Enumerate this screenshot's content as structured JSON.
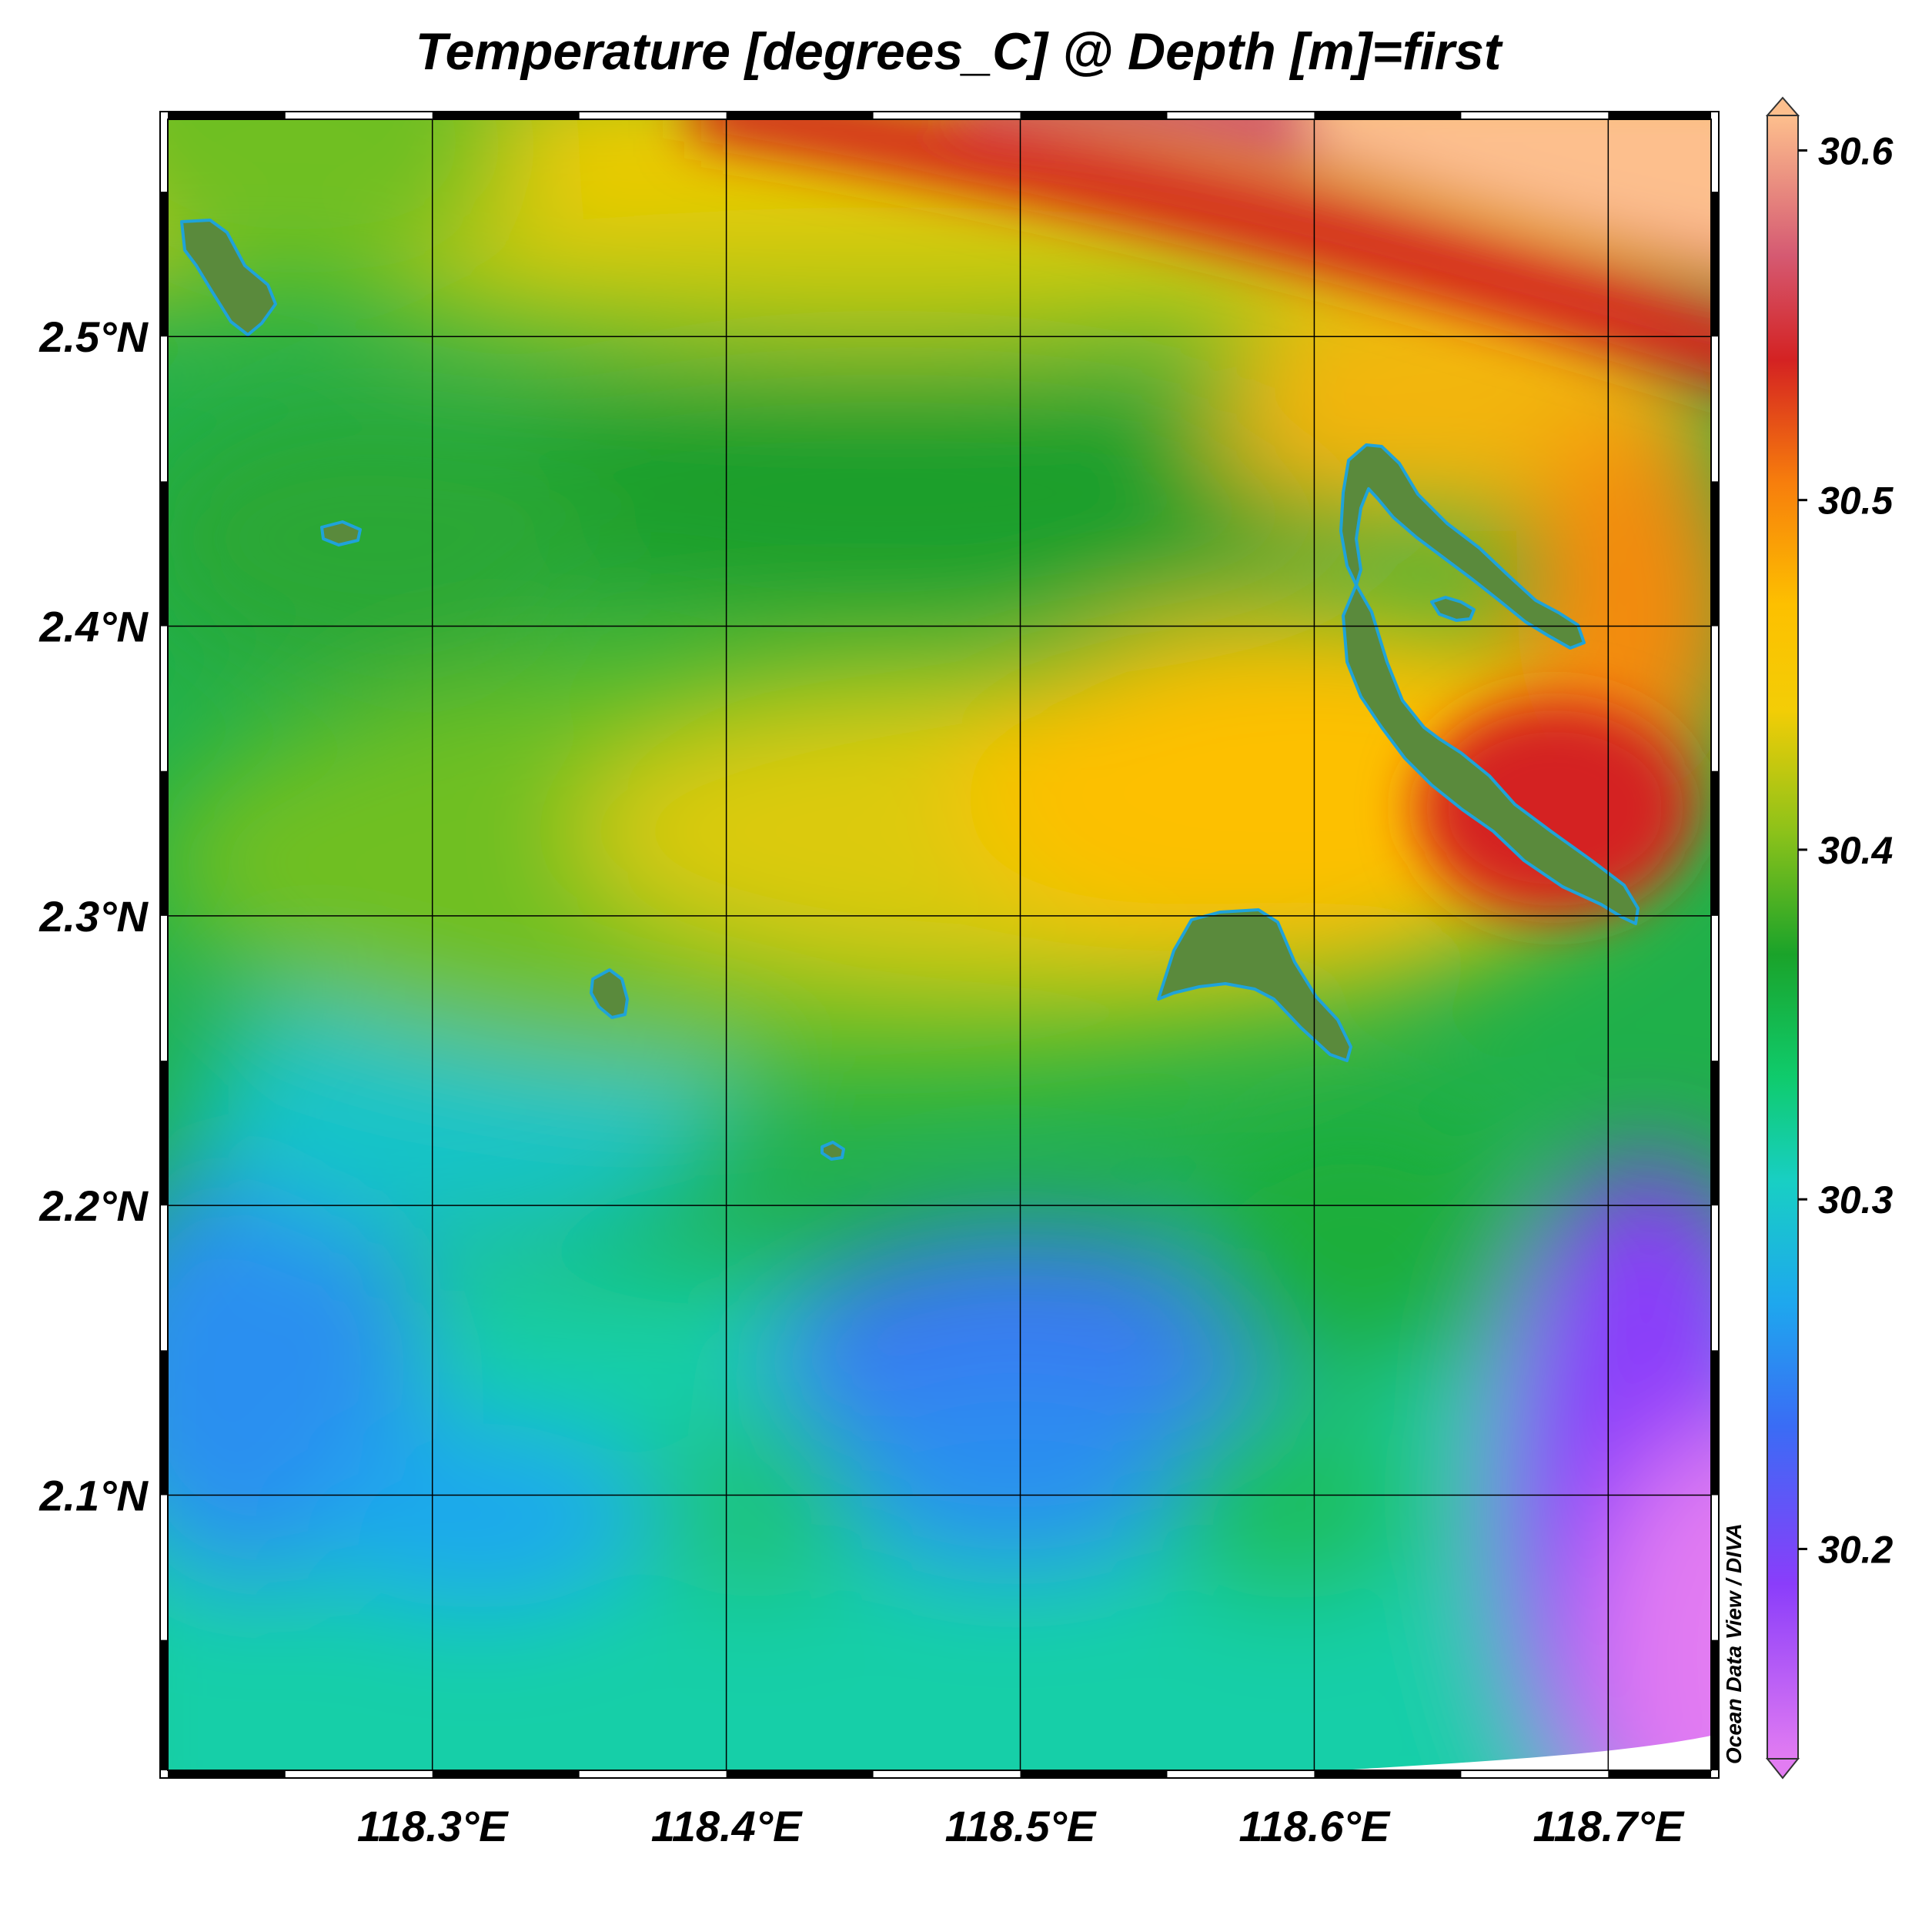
{
  "title": "Temperature [degrees_C] @ Depth [m]=first",
  "credit": "Ocean Data View / DIVA",
  "map": {
    "lon_range": [
      118.21,
      118.735
    ],
    "lat_range": [
      2.005,
      2.575
    ],
    "lon_ticks": [
      {
        "value": 118.3,
        "label": "118.3°E"
      },
      {
        "value": 118.4,
        "label": "118.4°E"
      },
      {
        "value": 118.5,
        "label": "118.5°E"
      },
      {
        "value": 118.6,
        "label": "118.6°E"
      },
      {
        "value": 118.7,
        "label": "118.7°E"
      }
    ],
    "lat_ticks": [
      {
        "value": 2.1,
        "label": "2.1°N"
      },
      {
        "value": 2.2,
        "label": "2.2°N"
      },
      {
        "value": 2.3,
        "label": "2.3°N"
      },
      {
        "value": 2.4,
        "label": "2.4°N"
      },
      {
        "value": 2.5,
        "label": "2.5°N"
      }
    ],
    "land_color": "#5a8a3c",
    "coast_color": "#1fa3d9"
  },
  "colorbar": {
    "min": 30.14,
    "max": 30.61,
    "ticks": [
      {
        "value": 30.2,
        "label": "30.2"
      },
      {
        "value": 30.3,
        "label": "30.3"
      },
      {
        "value": 30.4,
        "label": "30.4"
      },
      {
        "value": 30.5,
        "label": "30.5"
      },
      {
        "value": 30.6,
        "label": "30.6"
      }
    ],
    "stops": [
      {
        "value": 30.14,
        "color": "#e27cf2"
      },
      {
        "value": 30.19,
        "color": "#8a3dfa"
      },
      {
        "value": 30.235,
        "color": "#3a6cf5"
      },
      {
        "value": 30.27,
        "color": "#1ea7ee"
      },
      {
        "value": 30.305,
        "color": "#18cfc4"
      },
      {
        "value": 30.335,
        "color": "#0fcb6c"
      },
      {
        "value": 30.37,
        "color": "#1aa32a"
      },
      {
        "value": 30.405,
        "color": "#8cc21a"
      },
      {
        "value": 30.44,
        "color": "#f3cd06"
      },
      {
        "value": 30.47,
        "color": "#fdc000"
      },
      {
        "value": 30.505,
        "color": "#f77e0c"
      },
      {
        "value": 30.54,
        "color": "#d42222"
      },
      {
        "value": 30.57,
        "color": "#d55a72"
      },
      {
        "value": 30.61,
        "color": "#fdbf8d"
      }
    ]
  }
}
